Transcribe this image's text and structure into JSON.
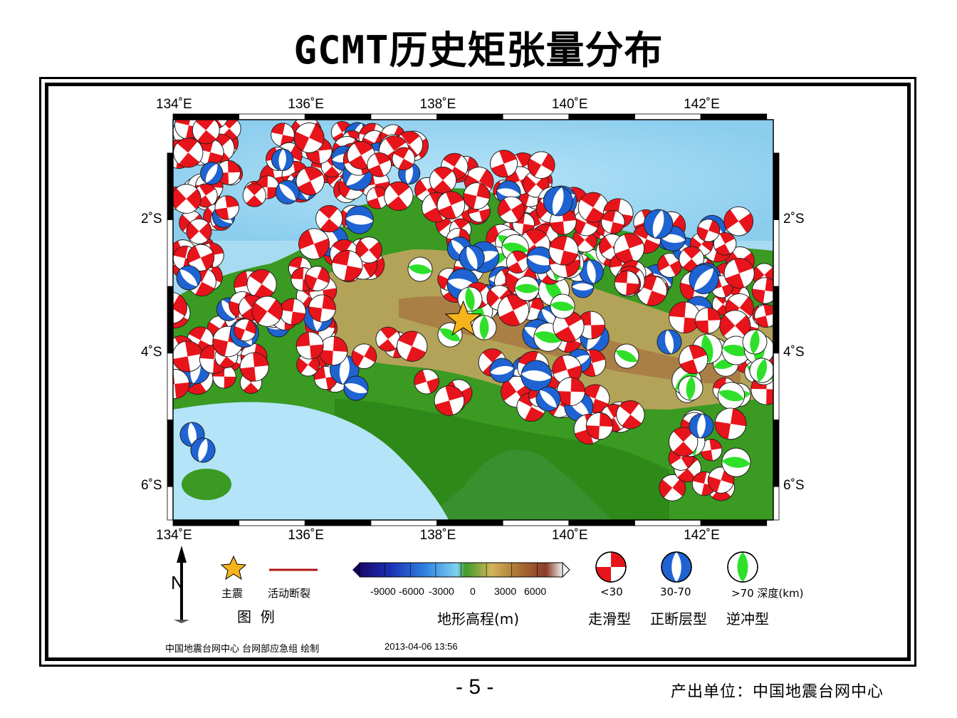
{
  "title": "GCMT历史矩张量分布",
  "map": {
    "lon_ticks": [
      "134˚E",
      "136˚E",
      "138˚E",
      "140˚E",
      "142˚E"
    ],
    "lat_ticks": [
      "2˚S",
      "4˚S",
      "6˚S"
    ],
    "lon_range": [
      134,
      143.1
    ],
    "lat_range": [
      -6.5,
      -0.5
    ],
    "mainshock": {
      "lon": 138.4,
      "lat": -3.5,
      "symbol": "star",
      "color": "#f6b31c"
    },
    "colors": {
      "strike_slip": "#e8141b",
      "normal": "#1f63d3",
      "thrust": "#2fe02a",
      "sea": "#a9def4",
      "land": "#2f8f1a"
    },
    "mechanism_counts_visible": {
      "strike_slip": "majority",
      "normal": "several dozen",
      "thrust": "about thirty"
    }
  },
  "legend": {
    "north_label": "N",
    "star_label": "主震",
    "fault_label": "活动断裂",
    "legend_title": "图  例",
    "colorbar_ticks": [
      "-9000",
      "-6000",
      "-3000",
      "0",
      "3000",
      "6000"
    ],
    "colorbar_title": "地形高程(m)",
    "depth_labels": [
      "<30",
      "30-70",
      ">70 深度(km)"
    ],
    "mechanism_types": [
      "走滑型",
      "正断层型",
      "逆冲型"
    ]
  },
  "footer": {
    "credit": "中国地震台网中心 台网部应急组 绘制",
    "datetime": "2013-04-06 13:56",
    "page_number": "- 5 -",
    "producer": "产出单位：中国地震台网中心"
  }
}
